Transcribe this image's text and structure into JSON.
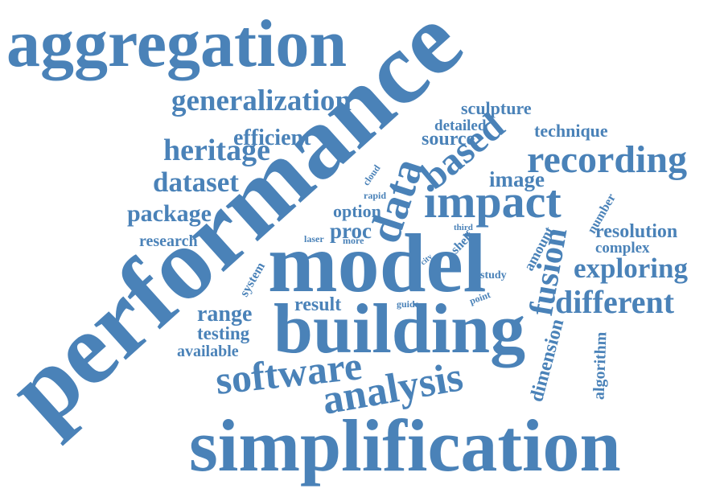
{
  "word_cloud": {
    "words": [
      "aggregation",
      "performance",
      "simplification",
      "model",
      "building",
      "impact",
      "recording",
      "generalization",
      "heritage",
      "dataset",
      "efficient",
      "package",
      "research",
      "software",
      "analysis",
      "range",
      "testing",
      "available",
      "result",
      "different",
      "exploring",
      "resolution",
      "complex",
      "fusion",
      "dimension",
      "algorithm",
      "data",
      "based",
      "image",
      "source",
      "detailed",
      "sculpture",
      "technique",
      "option",
      "proc",
      "cloud",
      "rapid",
      "laser",
      "more",
      "shelf",
      "third",
      "city",
      "study",
      "guide",
      "point",
      "amount",
      "number",
      "system"
    ]
  }
}
